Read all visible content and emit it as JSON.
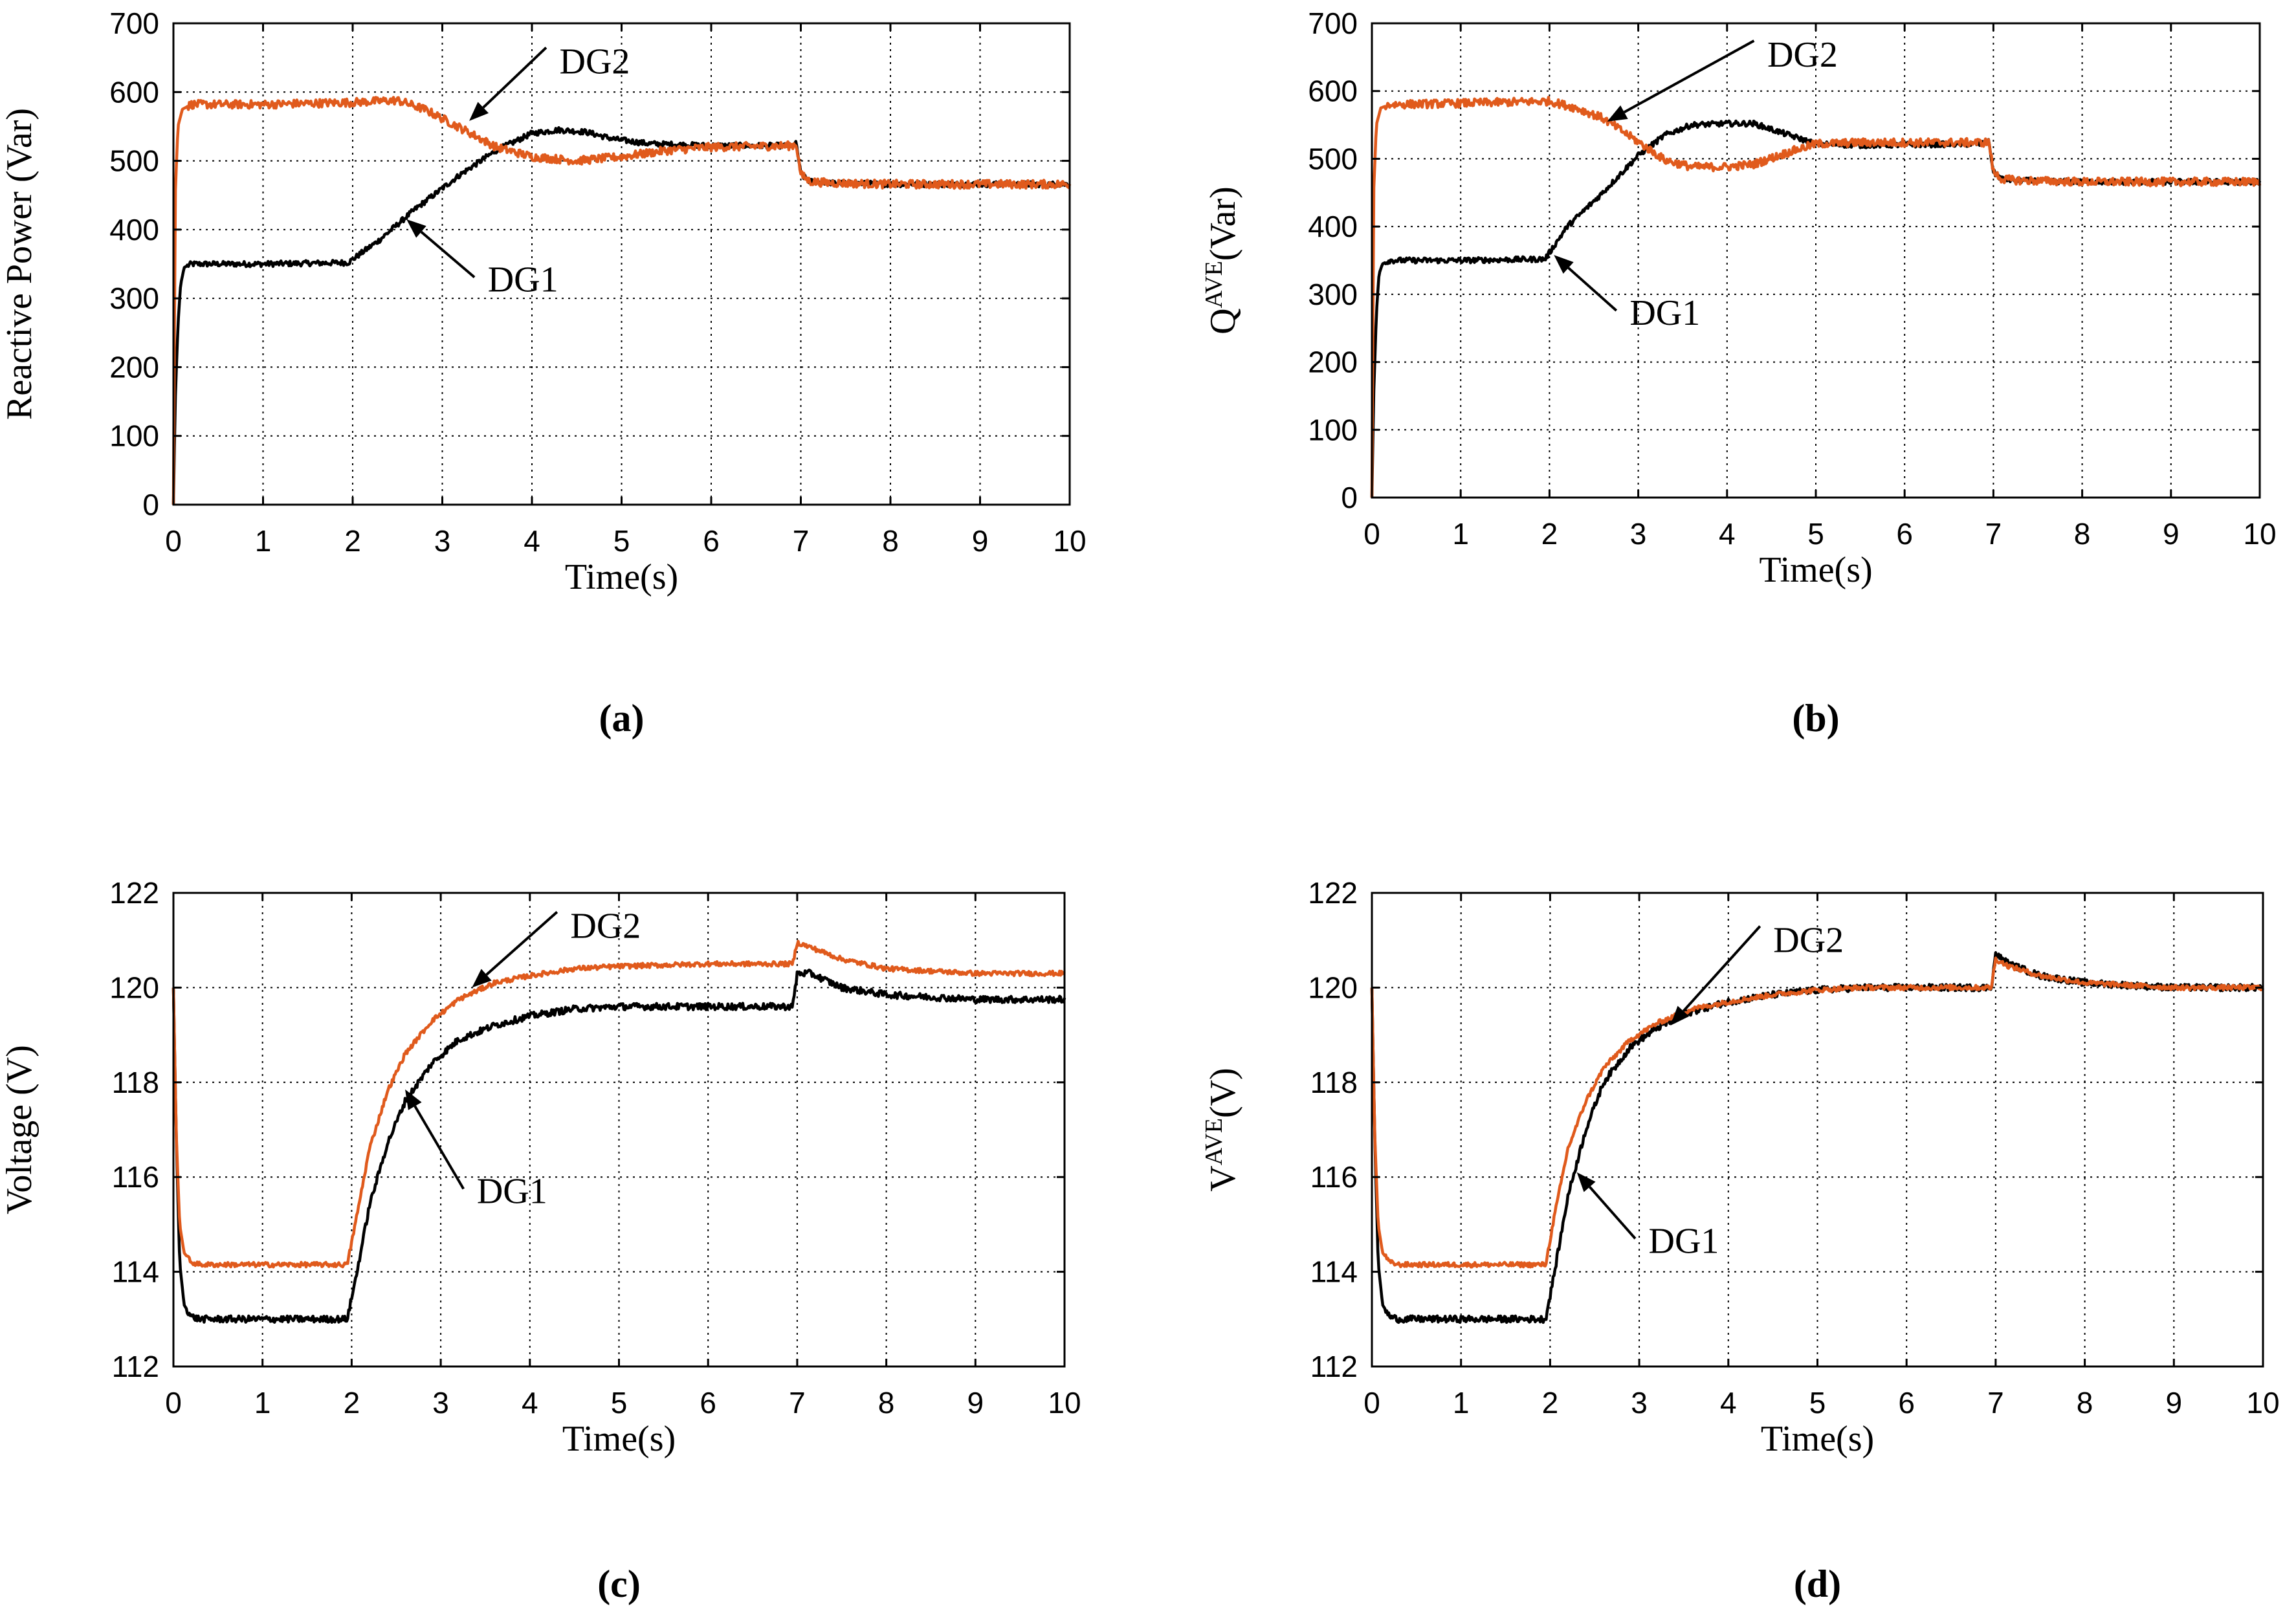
{
  "colors": {
    "DG1": "#000000",
    "DG2": "#e05a1c",
    "grid": "#000000"
  },
  "chart_data": [
    {
      "type": "line",
      "panel_label": "(a)",
      "xlabel": "Time(s)",
      "ylabel": "Reactive Power (Var)",
      "xlim": [
        0,
        10
      ],
      "ylim": [
        0,
        700
      ],
      "xticks": [
        "0",
        "1",
        "2",
        "3",
        "4",
        "5",
        "6",
        "7",
        "8",
        "9",
        "10"
      ],
      "yticks": [
        "0",
        "100",
        "200",
        "300",
        "400",
        "500",
        "600",
        "700"
      ],
      "grid": true,
      "series": [
        {
          "name": "DG1",
          "color": "#000000",
          "noise": 4,
          "x": [
            0,
            0.02,
            0.05,
            0.08,
            0.12,
            0.2,
            0.3,
            1.0,
            1.95,
            2.3,
            2.7,
            3.2,
            3.6,
            4.0,
            4.3,
            4.6,
            4.9,
            5.3,
            6.0,
            6.9,
            6.95,
            7.0,
            7.1,
            7.3,
            8.0,
            9.0,
            10.0
          ],
          "y": [
            0,
            150,
            260,
            320,
            345,
            350,
            350,
            350,
            352,
            385,
            430,
            480,
            515,
            540,
            545,
            542,
            532,
            525,
            522,
            522,
            525,
            480,
            470,
            468,
            466,
            466,
            466
          ]
        },
        {
          "name": "DG2",
          "color": "#e05a1c",
          "noise": 6,
          "x": [
            0,
            0.02,
            0.05,
            0.1,
            0.2,
            1.0,
            2.0,
            2.5,
            2.8,
            3.2,
            3.6,
            4.0,
            4.5,
            5.0,
            5.5,
            6.0,
            6.9,
            6.95,
            7.0,
            7.1,
            7.3,
            8.0,
            9.0,
            10.0
          ],
          "y": [
            0,
            450,
            550,
            575,
            582,
            582,
            585,
            588,
            575,
            548,
            520,
            506,
            500,
            506,
            515,
            520,
            522,
            525,
            480,
            470,
            468,
            466,
            466,
            466
          ]
        }
      ],
      "annotations": [
        {
          "text": "DG2",
          "x": 4.7,
          "y": 627,
          "arrow_to": [
            3.3,
            558
          ]
        },
        {
          "text": "DG1",
          "x": 3.9,
          "y": 310,
          "arrow_to": [
            2.6,
            415
          ]
        }
      ]
    },
    {
      "type": "line",
      "panel_label": "(b)",
      "xlabel": "Time(s)",
      "ylabel": "Q",
      "ylabel_superscript": "AVE",
      "ylabel_suffix": "(Var)",
      "xlim": [
        0,
        10
      ],
      "ylim": [
        0,
        700
      ],
      "xticks": [
        "0",
        "1",
        "2",
        "3",
        "4",
        "5",
        "6",
        "7",
        "8",
        "9",
        "10"
      ],
      "yticks": [
        "0",
        "100",
        "200",
        "300",
        "400",
        "500",
        "600",
        "700"
      ],
      "grid": true,
      "series": [
        {
          "name": "DG1",
          "color": "#000000",
          "noise": 4,
          "x": [
            0,
            0.02,
            0.05,
            0.08,
            0.12,
            0.2,
            1.0,
            1.95,
            2.2,
            2.6,
            3.0,
            3.3,
            3.6,
            4.0,
            4.3,
            4.7,
            5.0,
            5.5,
            6.9,
            6.95,
            7.0,
            7.1,
            7.3,
            8.0,
            9.0,
            10.0
          ],
          "y": [
            0,
            150,
            270,
            330,
            345,
            350,
            350,
            352,
            400,
            450,
            505,
            535,
            550,
            552,
            552,
            535,
            522,
            520,
            522,
            525,
            480,
            470,
            468,
            466,
            466,
            466
          ]
        },
        {
          "name": "DG2",
          "color": "#e05a1c",
          "noise": 6,
          "x": [
            0,
            0.02,
            0.05,
            0.1,
            0.2,
            1.0,
            2.0,
            2.3,
            2.6,
            3.0,
            3.3,
            3.6,
            4.0,
            4.3,
            4.7,
            5.0,
            5.5,
            6.0,
            6.9,
            6.95,
            7.0,
            7.1,
            7.3,
            8.0,
            9.0,
            10.0
          ],
          "y": [
            0,
            450,
            550,
            575,
            580,
            582,
            585,
            575,
            560,
            525,
            498,
            488,
            488,
            492,
            510,
            522,
            524,
            524,
            524,
            525,
            480,
            470,
            468,
            466,
            466,
            466
          ]
        }
      ],
      "annotations": [
        {
          "text": "DG2",
          "x": 4.85,
          "y": 636,
          "arrow_to": [
            2.65,
            555
          ]
        },
        {
          "text": "DG1",
          "x": 3.3,
          "y": 255,
          "arrow_to": [
            2.05,
            358
          ]
        }
      ]
    },
    {
      "type": "line",
      "panel_label": "(c)",
      "xlabel": "Time(s)",
      "ylabel": "Voltage (V)",
      "xlim": [
        0,
        10
      ],
      "ylim": [
        112,
        122
      ],
      "xticks": [
        "0",
        "1",
        "2",
        "3",
        "4",
        "5",
        "6",
        "7",
        "8",
        "9",
        "10"
      ],
      "yticks": [
        "112",
        "114",
        "116",
        "118",
        "120",
        "122"
      ],
      "grid": true,
      "series": [
        {
          "name": "DG1",
          "color": "#000000",
          "noise": 0.07,
          "x": [
            0,
            0.03,
            0.07,
            0.12,
            0.2,
            0.3,
            1.0,
            1.95,
            2.05,
            2.2,
            2.4,
            2.6,
            2.9,
            3.2,
            3.6,
            4.0,
            4.5,
            5.0,
            6.0,
            6.95,
            7.0,
            7.15,
            7.5,
            8.0,
            9.0,
            10.0
          ],
          "y": [
            120,
            117,
            114.2,
            113.3,
            113.05,
            113,
            113,
            113,
            113.9,
            115.4,
            116.7,
            117.6,
            118.4,
            118.9,
            119.2,
            119.4,
            119.55,
            119.6,
            119.6,
            119.6,
            120.3,
            120.3,
            120.0,
            119.85,
            119.75,
            119.75
          ]
        },
        {
          "name": "DG2",
          "color": "#e05a1c",
          "noise": 0.05,
          "x": [
            0,
            0.03,
            0.07,
            0.12,
            0.2,
            0.3,
            1.0,
            1.95,
            2.05,
            2.2,
            2.4,
            2.6,
            2.9,
            3.2,
            3.6,
            4.0,
            4.5,
            5.0,
            6.0,
            6.95,
            7.0,
            7.15,
            7.5,
            8.0,
            9.0,
            10.0
          ],
          "y": [
            120,
            117,
            115.0,
            114.4,
            114.2,
            114.15,
            114.15,
            114.15,
            115.1,
            116.6,
            117.8,
            118.6,
            119.3,
            119.75,
            120.1,
            120.25,
            120.4,
            120.45,
            120.5,
            120.5,
            120.95,
            120.85,
            120.6,
            120.4,
            120.3,
            120.3
          ]
        }
      ],
      "annotations": [
        {
          "text": "DG2",
          "x": 4.85,
          "y": 121.05,
          "arrow_to": [
            3.35,
            120.0
          ]
        },
        {
          "text": "DG1",
          "x": 3.8,
          "y": 115.45,
          "arrow_to": [
            2.6,
            117.85
          ]
        }
      ]
    },
    {
      "type": "line",
      "panel_label": "(d)",
      "xlabel": "Time(s)",
      "ylabel": "V",
      "ylabel_superscript": "AVE",
      "ylabel_suffix": "(V)",
      "xlim": [
        0,
        10
      ],
      "ylim": [
        112,
        122
      ],
      "xticks": [
        "0",
        "1",
        "2",
        "3",
        "4",
        "5",
        "6",
        "7",
        "8",
        "9",
        "10"
      ],
      "yticks": [
        "112",
        "114",
        "116",
        "118",
        "120",
        "122"
      ],
      "grid": true,
      "series": [
        {
          "name": "DG1",
          "color": "#000000",
          "noise": 0.07,
          "x": [
            0,
            0.03,
            0.07,
            0.12,
            0.2,
            0.3,
            1.0,
            1.95,
            2.05,
            2.2,
            2.4,
            2.6,
            2.9,
            3.2,
            3.6,
            4.0,
            4.5,
            5.0,
            5.5,
            6.0,
            6.95,
            7.0,
            7.15,
            7.5,
            8.0,
            9.0,
            10.0
          ],
          "y": [
            120,
            117,
            114.2,
            113.3,
            113.05,
            113,
            113,
            113,
            114.0,
            115.6,
            117.0,
            118.0,
            118.75,
            119.15,
            119.5,
            119.7,
            119.85,
            119.95,
            120.0,
            120.0,
            120.0,
            120.7,
            120.5,
            120.25,
            120.1,
            120.0,
            120.0
          ]
        },
        {
          "name": "DG2",
          "color": "#e05a1c",
          "noise": 0.05,
          "x": [
            0,
            0.03,
            0.07,
            0.12,
            0.2,
            0.3,
            1.0,
            1.95,
            2.05,
            2.2,
            2.4,
            2.6,
            2.9,
            3.2,
            3.6,
            4.0,
            4.5,
            5.0,
            5.5,
            6.0,
            6.95,
            7.0,
            7.15,
            7.5,
            8.0,
            9.0,
            10.0
          ],
          "y": [
            120,
            117,
            115.0,
            114.4,
            114.2,
            114.15,
            114.15,
            114.15,
            115.2,
            116.6,
            117.6,
            118.3,
            118.9,
            119.25,
            119.55,
            119.7,
            119.85,
            119.95,
            120.0,
            120.0,
            120.0,
            120.6,
            120.45,
            120.25,
            120.1,
            120.0,
            120.0
          ]
        }
      ],
      "annotations": [
        {
          "text": "DG2",
          "x": 4.9,
          "y": 120.75,
          "arrow_to": [
            3.35,
            119.2
          ]
        },
        {
          "text": "DG1",
          "x": 3.5,
          "y": 114.4,
          "arrow_to": [
            2.3,
            116.1
          ]
        }
      ]
    }
  ]
}
